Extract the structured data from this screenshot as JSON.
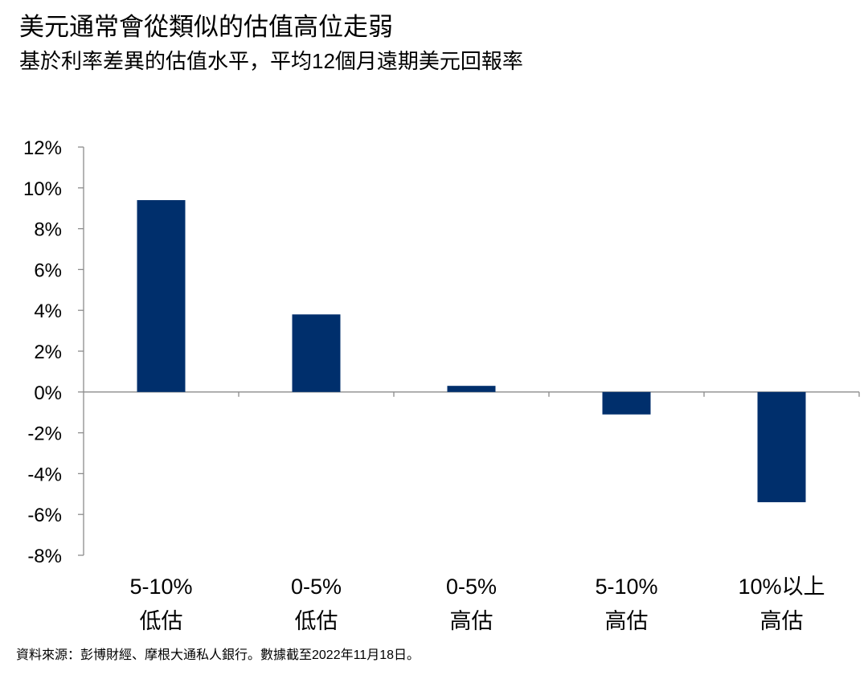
{
  "title": "美元通常會從類似的估值高位走弱",
  "subtitle": "基於利率差異的估值水平，平均12個月遠期美元回報率",
  "source": "資料來源：彭博財經、摩根大通私人銀行。數據截至2022年11月18日。",
  "chart_data": {
    "type": "bar",
    "categories": [
      [
        "5-10%",
        "低估"
      ],
      [
        "0-5%",
        "低估"
      ],
      [
        "0-5%",
        "高估"
      ],
      [
        "5-10%",
        "高估"
      ],
      [
        "10%以上",
        "高估"
      ]
    ],
    "values": [
      9.4,
      3.8,
      0.3,
      -1.1,
      -5.4
    ],
    "y_tick_labels": [
      "12%",
      "10%",
      "8%",
      "6%",
      "4%",
      "2%",
      "0%",
      "-2%",
      "-4%",
      "-6%",
      "-8%"
    ],
    "ylim": [
      -8,
      12
    ],
    "y_tick_step": 2,
    "bar_color": "#002f6c",
    "grid": false,
    "legend": "none"
  }
}
